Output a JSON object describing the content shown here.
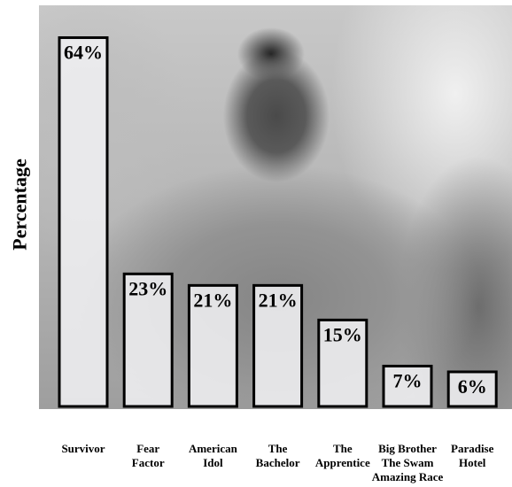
{
  "chart_data": {
    "type": "bar",
    "title": "",
    "xlabel": "",
    "ylabel": "Percentage",
    "categories": [
      [
        "Survivor"
      ],
      [
        "Fear",
        "Factor"
      ],
      [
        "American",
        "Idol"
      ],
      [
        "The",
        "Bachelor"
      ],
      [
        "The",
        "Apprentice"
      ],
      [
        "Big Brother",
        "The Swam",
        "Amazing Race"
      ],
      [
        "Paradise",
        "Hotel"
      ]
    ],
    "values": [
      64,
      23,
      21,
      21,
      15,
      7,
      6
    ],
    "data_labels": [
      "64%",
      "23%",
      "21%",
      "21%",
      "15%",
      "7%",
      "6%"
    ],
    "ylim": [
      0,
      69
    ],
    "grid": false,
    "legend": "none",
    "colors": {
      "bar_fill": "#efeff1",
      "bar_stroke": "#000000",
      "text": "#000000"
    }
  }
}
